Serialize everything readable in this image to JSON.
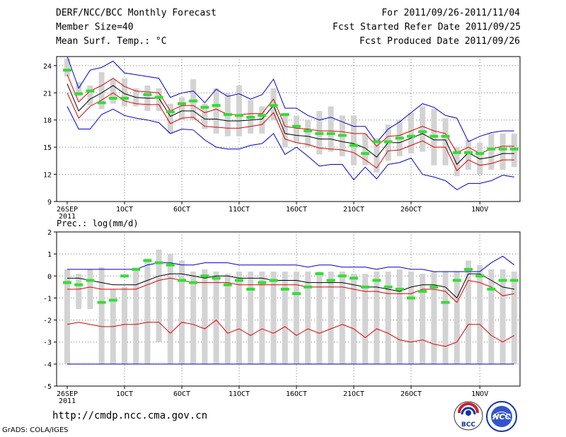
{
  "header": {
    "title": "DERF/NCC/BCC Monthly Forecast",
    "member_size": "Member Size=40",
    "variable": "Mean Surf. Temp.: °C",
    "period": "For 2011/09/26-2011/11/04",
    "fcst_started": "Fcst Started Refer Date 2011/09/25",
    "fcst_produced": "Fcst Produced Date 2011/09/26"
  },
  "footer": {
    "url": "http://cmdp.ncc.cma.gov.cn",
    "grads_credit": "GrADS: COLA/IGES"
  },
  "logos": {
    "bcc_text": "BCC",
    "ncc_text": "NCC"
  },
  "colors": {
    "box": "#d3d3d3",
    "obs": "#33dd33",
    "spread": "#0000cc",
    "std": "#dd0000",
    "mean": "#000000",
    "grid": "#777777"
  },
  "chart_data": [
    {
      "type": "line",
      "id": "temperature",
      "title": "",
      "ylabel": "",
      "ylim": [
        9,
        25
      ],
      "yticks": [
        9,
        12,
        15,
        18,
        21,
        24
      ],
      "days": 40,
      "xticks": [
        {
          "day": 0,
          "label": "26SEP",
          "sub": "2011"
        },
        {
          "day": 5,
          "label": "1OCT"
        },
        {
          "day": 10,
          "label": "6OCT"
        },
        {
          "day": 15,
          "label": "11OCT"
        },
        {
          "day": 20,
          "label": "16OCT"
        },
        {
          "day": 25,
          "label": "21OCT"
        },
        {
          "day": 30,
          "label": "26OCT"
        },
        {
          "day": 36,
          "label": "1NOV"
        }
      ],
      "series": [
        {
          "name": "max",
          "values": [
            25.0,
            21.5,
            23.5,
            23.8,
            24.5,
            23.2,
            23.0,
            22.8,
            22.6,
            20.5,
            21.0,
            21.2,
            19.9,
            21.4,
            20.6,
            20.9,
            20.3,
            20.8,
            22.5,
            19.3,
            19.3,
            18.5,
            18.0,
            18.3,
            17.8,
            17.3,
            17.3,
            15.5,
            17.0,
            17.8,
            18.8,
            19.8,
            19.4,
            18.5,
            18.2,
            15.6,
            16.2,
            16.6,
            16.8,
            16.8
          ]
        },
        {
          "name": "std_upper",
          "values": [
            23.0,
            20.0,
            21.2,
            21.8,
            22.6,
            21.7,
            21.2,
            21.1,
            21.0,
            19.0,
            19.6,
            19.6,
            18.8,
            19.2,
            18.6,
            18.6,
            18.7,
            18.7,
            20.3,
            17.3,
            17.1,
            17.0,
            16.8,
            16.8,
            16.7,
            16.5,
            16.5,
            15.1,
            16.2,
            16.3,
            16.8,
            17.3,
            16.8,
            16.5,
            14.4,
            15.0,
            14.3,
            14.8,
            15.1,
            15.1
          ]
        },
        {
          "name": "mean",
          "values": [
            22.0,
            19.0,
            20.3,
            21.0,
            21.8,
            20.9,
            20.5,
            20.4,
            20.4,
            18.4,
            19.0,
            19.0,
            18.1,
            18.1,
            17.9,
            17.9,
            18.0,
            18.1,
            19.6,
            16.5,
            16.3,
            16.2,
            15.9,
            15.9,
            15.6,
            15.4,
            14.9,
            13.9,
            15.5,
            15.5,
            16.0,
            16.5,
            15.8,
            15.8,
            13.1,
            14.4,
            13.7,
            13.9,
            14.3,
            14.3
          ]
        },
        {
          "name": "std_lower",
          "values": [
            21.0,
            18.2,
            19.5,
            20.2,
            21.0,
            20.1,
            19.8,
            19.7,
            19.7,
            17.6,
            18.2,
            18.3,
            17.3,
            17.2,
            17.1,
            17.1,
            17.3,
            17.5,
            18.8,
            15.9,
            15.5,
            15.3,
            14.9,
            14.8,
            14.7,
            14.4,
            13.6,
            12.7,
            14.6,
            14.7,
            15.2,
            15.7,
            15.0,
            15.0,
            12.4,
            13.6,
            13.0,
            13.2,
            13.6,
            13.6
          ]
        },
        {
          "name": "min",
          "values": [
            19.5,
            17.0,
            17.0,
            18.6,
            19.2,
            18.5,
            18.2,
            18.0,
            17.7,
            16.5,
            17.0,
            16.9,
            15.8,
            15.0,
            14.8,
            14.8,
            15.2,
            15.4,
            16.5,
            14.2,
            15.0,
            14.0,
            12.9,
            13.1,
            13.1,
            11.4,
            12.8,
            11.5,
            13.1,
            13.3,
            13.8,
            12.0,
            11.7,
            11.3,
            10.3,
            11.0,
            11.0,
            11.3,
            11.9,
            11.7
          ]
        }
      ],
      "boxes": [
        [
          22.8,
          24.8
        ],
        [
          20.6,
          22.2
        ],
        [
          19.6,
          21.8
        ],
        [
          19.2,
          23.3
        ],
        [
          19.8,
          22.5
        ],
        [
          19.5,
          22.6
        ],
        [
          19.5,
          21.5
        ],
        [
          19.0,
          21.8
        ],
        [
          19.0,
          21.5
        ],
        [
          16.5,
          19.8
        ],
        [
          18.0,
          20.5
        ],
        [
          18.0,
          22.5
        ],
        [
          17.0,
          19.8
        ],
        [
          16.5,
          21.5
        ],
        [
          16.2,
          21.0
        ],
        [
          16.2,
          21.8
        ],
        [
          16.5,
          20.2
        ],
        [
          16.5,
          19.5
        ],
        [
          18.0,
          21.5
        ],
        [
          15.0,
          18.6
        ],
        [
          15.5,
          18.5
        ],
        [
          15.0,
          18.0
        ],
        [
          14.2,
          19.0
        ],
        [
          14.5,
          19.5
        ],
        [
          14.0,
          18.5
        ],
        [
          13.0,
          18.5
        ],
        [
          13.0,
          16.5
        ],
        [
          12.2,
          16.0
        ],
        [
          13.5,
          17.5
        ],
        [
          14.0,
          18.0
        ],
        [
          14.3,
          18.8
        ],
        [
          14.5,
          19.5
        ],
        [
          13.0,
          19.2
        ],
        [
          13.0,
          18.2
        ],
        [
          11.8,
          15.0
        ],
        [
          12.5,
          15.8
        ],
        [
          12.0,
          15.5
        ],
        [
          12.5,
          16.5
        ],
        [
          12.5,
          16.5
        ],
        [
          12.8,
          16.5
        ]
      ],
      "obs": [
        23.5,
        20.9,
        21.2,
        19.9,
        20.4,
        20.4,
        null,
        20.8,
        20.5,
        18.9,
        19.8,
        20.1,
        19.4,
        19.6,
        18.6,
        18.5,
        18.3,
        18.5,
        19.6,
        18.6,
        17.3,
        16.8,
        16.5,
        16.5,
        16.3,
        15.2,
        14.3,
        15.6,
        15.6,
        16.0,
        16.2,
        16.7,
        16.2,
        16.2,
        14.4,
        14.4,
        14.3,
        14.8,
        14.8,
        14.8
      ]
    },
    {
      "type": "line",
      "id": "precipitation",
      "title": "Prec.: log(mm/d)",
      "ylabel": "",
      "ylim": [
        -5,
        2
      ],
      "yticks": [
        -5,
        -4,
        -3,
        -2,
        -1,
        0,
        1,
        2
      ],
      "days": 40,
      "xticks": [
        {
          "day": 0,
          "label": "26SEP",
          "sub": "2011"
        },
        {
          "day": 5,
          "label": "1OCT"
        },
        {
          "day": 10,
          "label": "6OCT"
        },
        {
          "day": 15,
          "label": "11OCT"
        },
        {
          "day": 20,
          "label": "16OCT"
        },
        {
          "day": 25,
          "label": "21OCT"
        },
        {
          "day": 30,
          "label": "26OCT"
        },
        {
          "day": 36,
          "label": "1NOV"
        }
      ],
      "series": [
        {
          "name": "max",
          "values": [
            0.3,
            0.3,
            0.3,
            0.3,
            0.3,
            0.3,
            0.3,
            0.5,
            0.6,
            0.6,
            0.5,
            0.5,
            0.6,
            0.6,
            0.6,
            0.5,
            0.5,
            0.5,
            0.5,
            0.5,
            0.5,
            0.4,
            0.5,
            0.5,
            0.4,
            0.4,
            0.4,
            0.3,
            0.4,
            0.4,
            0.3,
            0.3,
            0.2,
            0.2,
            0.2,
            0.2,
            0.2,
            0.6,
            0.9,
            0.5
          ]
        },
        {
          "name": "mean",
          "values": [
            -0.1,
            -0.1,
            -0.2,
            -0.3,
            -0.4,
            -0.4,
            -0.4,
            -0.2,
            0.0,
            0.1,
            0.1,
            0.0,
            -0.1,
            0.0,
            0.0,
            -0.1,
            -0.1,
            -0.1,
            -0.2,
            -0.2,
            -0.2,
            -0.3,
            -0.3,
            -0.3,
            -0.3,
            -0.4,
            -0.5,
            -0.5,
            -0.6,
            -0.7,
            -0.5,
            -0.4,
            -0.4,
            -0.5,
            -1.0,
            0.1,
            0.1,
            -0.2,
            -0.5,
            -0.6
          ]
        },
        {
          "name": "std_upper",
          "values": [
            -0.6,
            -0.6,
            -0.5,
            -0.6,
            -0.6,
            -0.6,
            -0.6,
            -0.4,
            -0.2,
            -0.1,
            -0.2,
            -0.3,
            -0.3,
            -0.3,
            -0.3,
            -0.4,
            -0.4,
            -0.4,
            -0.4,
            -0.4,
            -0.4,
            -0.5,
            -0.5,
            -0.5,
            -0.5,
            -0.6,
            -0.7,
            -0.7,
            -0.8,
            -0.8,
            -0.8,
            -0.6,
            -0.6,
            -0.7,
            -1.2,
            -0.2,
            -0.3,
            -0.5,
            -0.9,
            -0.8
          ]
        },
        {
          "name": "std_lower",
          "values": [
            -2.2,
            -2.1,
            -2.2,
            -2.3,
            -2.3,
            -2.2,
            -2.2,
            -2.1,
            -2.1,
            -2.6,
            -2.1,
            -2.2,
            -2.4,
            -2.0,
            -2.6,
            -2.4,
            -2.7,
            -2.4,
            -2.6,
            -2.3,
            -2.7,
            -2.4,
            -2.6,
            -2.4,
            -2.2,
            -2.4,
            -2.8,
            -2.4,
            -2.6,
            -2.9,
            -3.0,
            -2.9,
            -3.1,
            -3.2,
            -3.0,
            -2.2,
            -2.2,
            -2.7,
            -3.0,
            -2.7
          ]
        },
        {
          "name": "min",
          "values": [
            -4.0,
            -4.0,
            -4.0,
            -4.0,
            -4.0,
            -4.0,
            -4.0,
            -4.0,
            -4.0,
            -4.0,
            -4.0,
            -4.0,
            -4.0,
            -4.0,
            -4.0,
            -4.0,
            -4.0,
            -4.0,
            -4.0,
            -4.0,
            -4.0,
            -4.0,
            -4.0,
            -4.0,
            -4.0,
            -4.0,
            -4.0,
            -4.0,
            -4.0,
            -4.0,
            -4.0,
            -4.0,
            -4.0,
            -4.0,
            -4.0,
            -4.0,
            -4.0,
            -4.0,
            -4.0,
            -4.0
          ]
        }
      ],
      "boxes": [
        [
          -4.0,
          0.3
        ],
        [
          -1.5,
          0.1
        ],
        [
          -1.5,
          0.3
        ],
        [
          -4.0,
          0.4
        ],
        [
          -4.0,
          -0.6
        ],
        [
          -4.0,
          -0.5
        ],
        [
          -4.0,
          0.3
        ],
        [
          -4.0,
          0.8
        ],
        [
          -3.0,
          1.2
        ],
        [
          -4.0,
          1.0
        ],
        [
          -4.0,
          0.7
        ],
        [
          -4.0,
          0.2
        ],
        [
          -4.0,
          0.3
        ],
        [
          -4.0,
          0.2
        ],
        [
          -4.0,
          0.1
        ],
        [
          -4.0,
          0.2
        ],
        [
          -4.0,
          0.2
        ],
        [
          -4.0,
          0.2
        ],
        [
          -4.0,
          0.2
        ],
        [
          -4.0,
          0.2
        ],
        [
          -4.0,
          0.2
        ],
        [
          -4.0,
          0.2
        ],
        [
          -4.0,
          0.2
        ],
        [
          -4.0,
          0.2
        ],
        [
          -4.0,
          0.2
        ],
        [
          -4.0,
          0.1
        ],
        [
          -4.0,
          0.1
        ],
        [
          -4.0,
          0.2
        ],
        [
          -4.0,
          0.2
        ],
        [
          -4.0,
          0.3
        ],
        [
          -4.0,
          0.2
        ],
        [
          -4.0,
          0.1
        ],
        [
          -4.0,
          0.2
        ],
        [
          -4.0,
          0.2
        ],
        [
          -4.0,
          0.2
        ],
        [
          -4.0,
          0.7
        ],
        [
          -4.0,
          0.5
        ],
        [
          -4.0,
          0.3
        ],
        [
          -4.0,
          0.3
        ],
        [
          -4.0,
          0.2
        ]
      ],
      "obs": [
        -0.3,
        -0.4,
        -0.2,
        -1.2,
        -1.1,
        0.0,
        0.3,
        0.7,
        0.6,
        0.5,
        -0.2,
        -0.3,
        0.0,
        -0.1,
        -0.4,
        -0.2,
        -0.6,
        -0.3,
        -0.2,
        -0.6,
        -0.8,
        -0.5,
        0.1,
        -0.2,
        0.0,
        -0.1,
        -0.5,
        -0.2,
        -0.5,
        -0.6,
        -1.0,
        -0.7,
        -0.5,
        -1.2,
        -0.2,
        0.3,
        0.0,
        -0.6,
        -0.2,
        -0.2
      ]
    }
  ]
}
